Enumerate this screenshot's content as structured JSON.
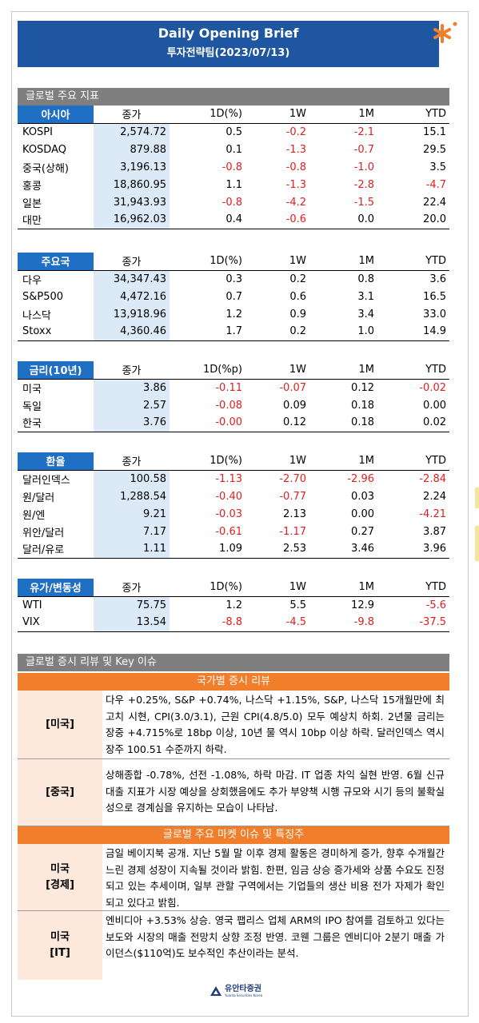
{
  "header": {
    "title": "Daily Opening Brief",
    "subtitle": "투자전략팀(2023/07/13)"
  },
  "global_section": {
    "title": "글로벌 주요 지표"
  },
  "tables": [
    {
      "section": "아시아",
      "headers": [
        "종가",
        "1D(%)",
        "1W",
        "1M",
        "YTD"
      ],
      "rows": [
        {
          "name": "KOSPI",
          "close": "2,574.72",
          "v": [
            "0.5",
            "-0.2",
            "-2.1",
            "15.1"
          ]
        },
        {
          "name": "KOSDAQ",
          "close": "879.88",
          "v": [
            "0.1",
            "-1.3",
            "-0.7",
            "29.5"
          ]
        },
        {
          "name": "중국(상해)",
          "close": "3,196.13",
          "v": [
            "-0.8",
            "-0.8",
            "-1.0",
            "3.5"
          ]
        },
        {
          "name": "홍콩",
          "close": "18,860.95",
          "v": [
            "1.1",
            "-1.3",
            "-2.8",
            "-4.7"
          ]
        },
        {
          "name": "일본",
          "close": "31,943.93",
          "v": [
            "-0.8",
            "-4.2",
            "-1.5",
            "22.4"
          ]
        },
        {
          "name": "대만",
          "close": "16,962.03",
          "v": [
            "0.4",
            "-0.6",
            "0.0",
            "20.0"
          ]
        }
      ]
    },
    {
      "section": "주요국",
      "headers": [
        "종가",
        "1D(%)",
        "1W",
        "1M",
        "YTD"
      ],
      "rows": [
        {
          "name": "다우",
          "close": "34,347.43",
          "v": [
            "0.3",
            "0.2",
            "0.8",
            "3.6"
          ]
        },
        {
          "name": "S&P500",
          "close": "4,472.16",
          "v": [
            "0.7",
            "0.6",
            "3.1",
            "16.5"
          ]
        },
        {
          "name": "나스닥",
          "close": "13,918.96",
          "v": [
            "1.2",
            "0.9",
            "3.4",
            "33.0"
          ]
        },
        {
          "name": "Stoxx",
          "close": "4,360.46",
          "v": [
            "1.7",
            "0.2",
            "1.0",
            "14.9"
          ]
        }
      ]
    },
    {
      "section": "금리(10년)",
      "headers": [
        "종가",
        "1D(%p)",
        "1W",
        "1M",
        "YTD"
      ],
      "rows": [
        {
          "name": "미국",
          "close": "3.86",
          "v": [
            "-0.11",
            "-0.07",
            "0.12",
            "-0.02"
          ]
        },
        {
          "name": "독일",
          "close": "2.57",
          "v": [
            "-0.08",
            "0.09",
            "0.18",
            "0.00"
          ]
        },
        {
          "name": "한국",
          "close": "3.76",
          "v": [
            "-0.00",
            "0.12",
            "0.18",
            "0.02"
          ]
        }
      ]
    },
    {
      "section": "환율",
      "headers": [
        "종가",
        "1D(%)",
        "1W",
        "1M",
        "YTD"
      ],
      "rows": [
        {
          "name": "달러인덱스",
          "close": "100.58",
          "v": [
            "-1.13",
            "-2.70",
            "-2.96",
            "-2.84"
          ]
        },
        {
          "name": "원/달러",
          "close": "1,288.54",
          "v": [
            "-0.40",
            "-0.77",
            "0.03",
            "2.24"
          ]
        },
        {
          "name": "원/엔",
          "close": "9.21",
          "v": [
            "-0.03",
            "2.13",
            "0.00",
            "-4.21"
          ]
        },
        {
          "name": "위안/달러",
          "close": "7.17",
          "v": [
            "-0.61",
            "-1.17",
            "0.27",
            "3.87"
          ]
        },
        {
          "name": "달러/유로",
          "close": "1.11",
          "v": [
            "1.09",
            "2.53",
            "3.46",
            "3.96"
          ]
        }
      ]
    },
    {
      "section": "유가/변동성",
      "headers": [
        "종가",
        "1D(%)",
        "1W",
        "1M",
        "YTD"
      ],
      "rows": [
        {
          "name": "WTI",
          "close": "75.75",
          "v": [
            "1.2",
            "5.5",
            "12.9",
            "-5.6"
          ]
        },
        {
          "name": "VIX",
          "close": "13.54",
          "v": [
            "-8.8",
            "-4.5",
            "-9.8",
            "-37.5"
          ]
        }
      ]
    }
  ],
  "review": {
    "title": "글로벌 증시 리뷰 및 Key 이슈",
    "country_header": "국가별 증시 리뷰",
    "market_header": "글로벌 주요 마켓 이슈 및 특징주",
    "us_label": "[미국]",
    "us_text": "다우 +0.25%, S&P +0.74%, 나스닥 +1.15%, S&P, 나스닥 15개월만에 최고치 시현, CPI(3.0/3.1), 근원 CPI(4.8/5.0) 모두 예상치 하회. 2년물 금리는 장중 +4.715%로 18bp 이상, 10년 물 역시 10bp 이상 하락. 달러인덱스 역시 장주 100.51 수준까지 하락.",
    "cn_label": "[중국]",
    "cn_text": "상해종합 -0.78%, 선전 -1.08%, 하락 마감. IT 업종 차익 실현 반영. 6월 신규대출 지표가 시장 예상을 상회했음에도 추가 부양책 시행 규모와 시기 등의 불확실성으로 경계심을 유지하는 모습이 나타남.",
    "econ_label1": "미국",
    "econ_label2": "[경제]",
    "econ_text": "금일 베이지북 공개. 지난 5월 말 이후 경제 활동은 경미하게 증가, 향후 수개월간 느린 경제 성장이 지속될 것이라 밝힘. 한편, 임금 상승 증가세와 상품 수요도 진정되고 있는 추세이며, 일부 관할 구역에서는 기업들의 생산 비용 전가 자제가 확인되고 있다고 밝힘.",
    "it_label1": "미국",
    "it_label2": "[IT]",
    "it_text": "엔비디아 +3.53% 상승. 영국 팹리스 업체 ARM의 IPO 참여를 검토하고 있다는 보도와 시장의 매출 전망치 상향 조정 반영. 코웬 그룹은 엔비디아 2분기 매출 가이던스($110억)도 보수적인 추산이라는 분석."
  },
  "footer": {
    "brand": "유안타증권",
    "brand_en": "Yuanta Securities Korea"
  },
  "colors": {
    "navy": "#1f56a2",
    "section_blue": "#1f6fc4",
    "orange": "#f07e2a",
    "negative": "#e02020",
    "close_bg": "#dce9f6"
  }
}
